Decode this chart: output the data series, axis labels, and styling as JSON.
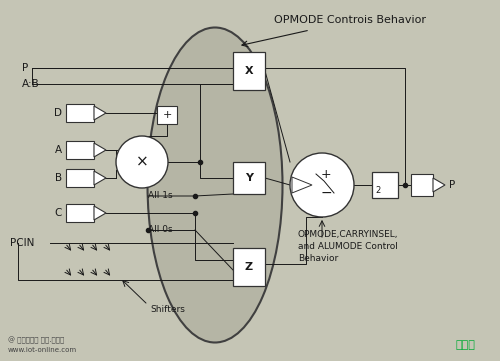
{
  "bg_color": "#c5c5b5",
  "title_text": "OPMODE Controis Behavior",
  "subtitle_text": "OPMODE,CARRYINSEL,\nand ALUMODE Control\nBehavior",
  "label_P_top": "P",
  "label_AB": "A:B",
  "label_D": "D",
  "label_A": "A",
  "label_B": "B",
  "label_C": "C",
  "label_PCIN": "PCIN",
  "label_X": "X",
  "label_Y": "Y",
  "label_Z": "Z",
  "label_All1s": "All 1s",
  "label_All0s": "All 0s",
  "label_Shifters": "Shifters",
  "label_P_out": "P",
  "footer_left1": "@ 物联网在线 智慧.创未来",
  "footer_left2": "www.iot-online.com",
  "footer_right": "接线图"
}
